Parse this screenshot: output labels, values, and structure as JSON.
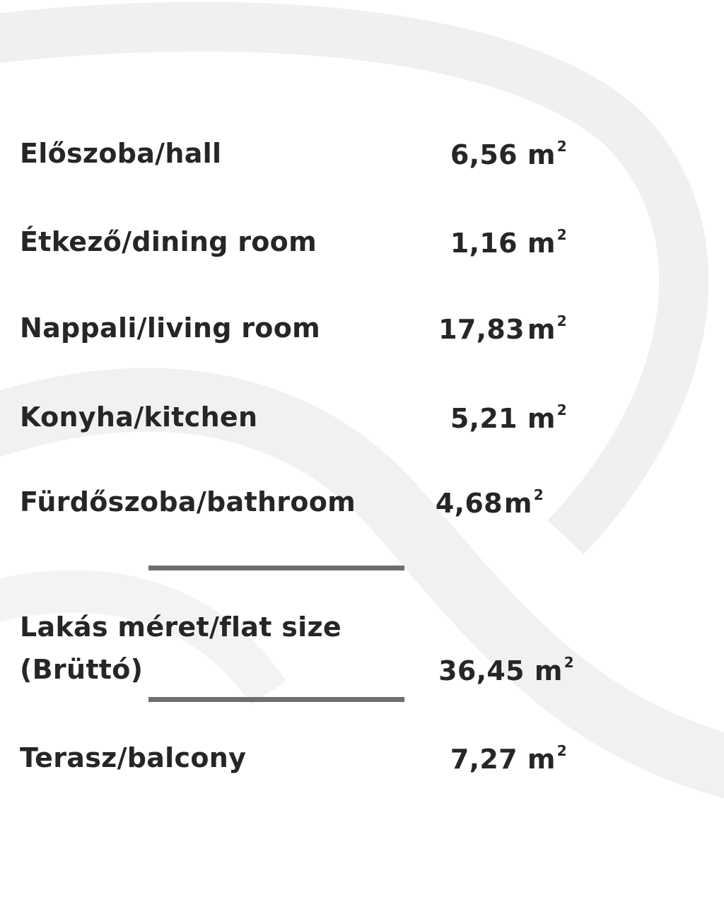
{
  "rooms": [
    {
      "label": "Előszoba/hall",
      "value": "6,56",
      "unit": "m",
      "sup": "2"
    },
    {
      "label": "Étkező/dining room",
      "value": "1,16",
      "unit": "m",
      "sup": "2"
    },
    {
      "label": "Nappali/living room",
      "value": "17,83",
      "unit": "m",
      "sup": "2"
    },
    {
      "label": "Konyha/kitchen",
      "value": "5,21",
      "unit": "m",
      "sup": "2"
    },
    {
      "label": "Fürdőszoba/bathroom",
      "value": "4,68",
      "unit": "m",
      "sup": "2"
    }
  ],
  "total": {
    "label_line1": "Lakás méret/flat size",
    "label_line2": "(Brüttó)",
    "value": "36,45",
    "unit": "m",
    "sup": "2"
  },
  "balcony": {
    "label": "Terasz/balcony",
    "value": "7,27",
    "unit": "m",
    "sup": "2"
  },
  "colors": {
    "text": "#262626",
    "rule": "#6e6e6e",
    "watermark": "#efefef"
  }
}
